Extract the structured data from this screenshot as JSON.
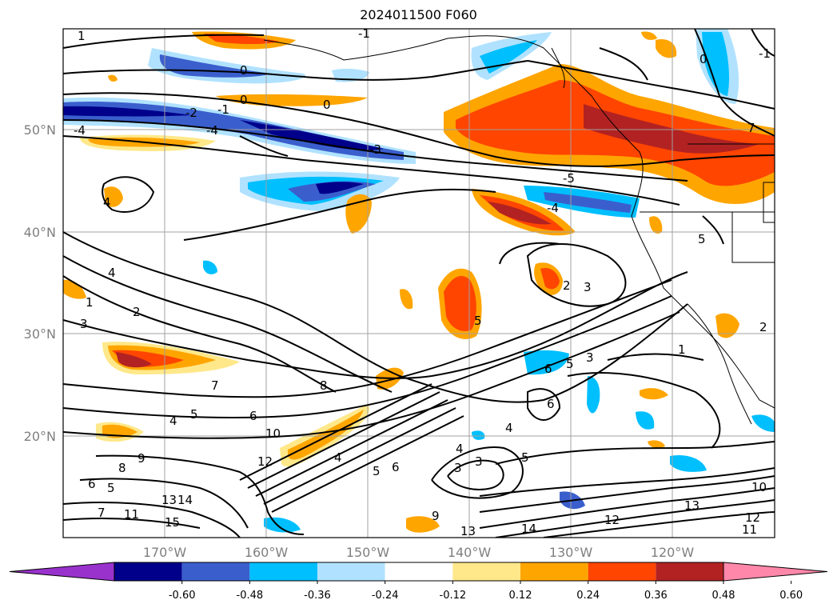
{
  "title": "2024011500 F060",
  "map": {
    "lat_labels": [
      "50°N",
      "40°N",
      "30°N",
      "20°N"
    ],
    "lon_labels": [
      "170°W",
      "160°W",
      "150°W",
      "140°W",
      "130°W",
      "120°W"
    ],
    "contour_labels": [
      "1",
      "0",
      "-1",
      "0",
      "0",
      "-2",
      "-1",
      "-4",
      "-4",
      "-3",
      "-5",
      "-4",
      "0",
      "-1",
      "5",
      "4",
      "2",
      "3",
      "7",
      "5",
      "4",
      "1",
      "2",
      "3",
      "5",
      "1",
      "3",
      "7",
      "8",
      "4",
      "5",
      "6",
      "10",
      "12",
      "4",
      "5",
      "6",
      "3",
      "3",
      "4",
      "5",
      "6",
      "4",
      "6",
      "2",
      "8",
      "9",
      "6",
      "5",
      "7",
      "14",
      "15",
      "13",
      "11",
      "9",
      "13",
      "14",
      "12",
      "13",
      "10",
      "12",
      "11"
    ]
  },
  "colorbar": {
    "labels": [
      "-0.60",
      "-0.48",
      "-0.36",
      "-0.24",
      "-0.12",
      "0.12",
      "0.24",
      "0.36",
      "0.48",
      "0.60"
    ],
    "colors": [
      "#9932cc",
      "#00008b",
      "#3a5fcd",
      "#00bfff",
      "#b0e2ff",
      "#ffffff",
      "#ffe88a",
      "#ffa500",
      "#ff4500",
      "#b22222",
      "#ff88aa"
    ]
  }
}
